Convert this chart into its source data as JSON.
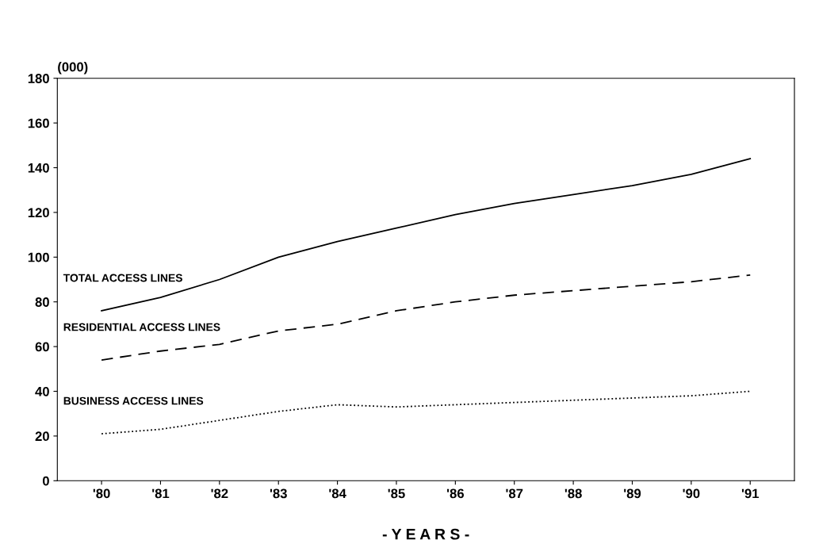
{
  "chart_data": {
    "type": "line",
    "ylabel": "(000)",
    "xlabel": "- Y E A R S -",
    "categories": [
      "'80",
      "'81",
      "'82",
      "'83",
      "'84",
      "'85",
      "'86",
      "'87",
      "'88",
      "'89",
      "'90",
      "'91"
    ],
    "series": [
      {
        "name": "TOTAL ACCESS LINES",
        "color": "#000000",
        "line_style": "solid",
        "values": [
          76,
          82,
          90,
          100,
          107,
          113,
          119,
          124,
          128,
          132,
          137,
          144
        ]
      },
      {
        "name": "RESIDENTIAL ACCESS LINES",
        "color": "#000000",
        "line_style": "dashed",
        "values": [
          54,
          58,
          61,
          67,
          70,
          76,
          80,
          83,
          85,
          87,
          89,
          92
        ]
      },
      {
        "name": "BUSINESS ACCESS LINES",
        "color": "#000000",
        "line_style": "dotted",
        "values": [
          21,
          23,
          27,
          31,
          34,
          33,
          34,
          35,
          36,
          37,
          38,
          40
        ]
      }
    ],
    "ylim": [
      0,
      180
    ],
    "yticks": [
      0,
      20,
      40,
      60,
      80,
      100,
      120,
      140,
      160,
      180
    ],
    "grid": false,
    "legend": false,
    "marker": "none"
  }
}
